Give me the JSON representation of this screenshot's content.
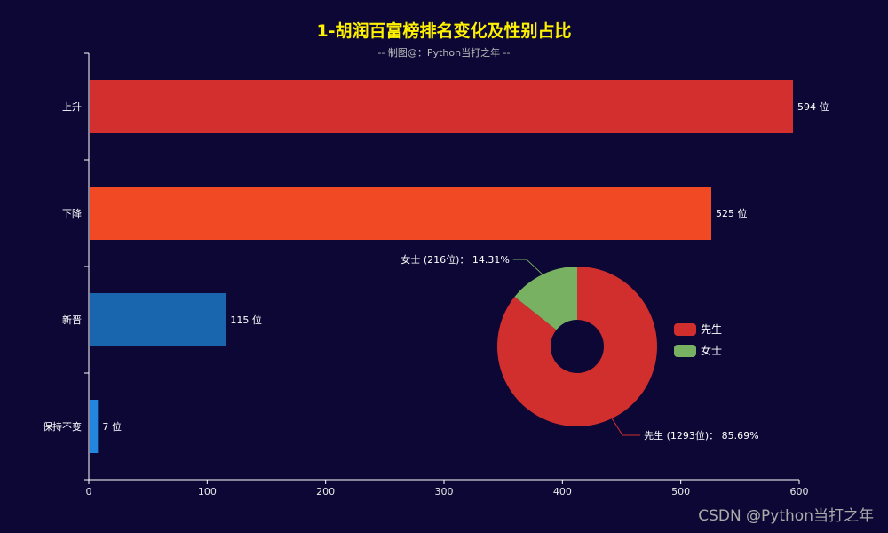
{
  "header": {
    "title": "1-胡润百富榜排名变化及性别占比",
    "subtitle": "-- 制图@：Python当打之年 --"
  },
  "watermark": "CSDN @Python当打之年",
  "chart_data": [
    {
      "type": "bar",
      "orientation": "horizontal",
      "categories": [
        "上升",
        "下降",
        "新晋",
        "保持不变"
      ],
      "values": [
        594,
        525,
        115,
        7
      ],
      "value_suffix": " 位",
      "colors": [
        "#d32f2f",
        "#f04923",
        "#1a66ae",
        "#2386de"
      ],
      "xlim": [
        0,
        600
      ],
      "xticks": [
        0,
        100,
        200,
        300,
        400,
        500,
        600
      ],
      "grid": false
    },
    {
      "type": "pie",
      "donut": true,
      "labels": [
        "先生",
        "女士"
      ],
      "values": [
        1293,
        216
      ],
      "percentages": [
        85.69,
        14.31
      ],
      "data_labels": [
        "先生 (1293位)：  85.69%",
        "女士 (216位)：  14.31%"
      ],
      "colors": [
        "#d12f2e",
        "#78b162"
      ],
      "legend": {
        "position": "right",
        "entries": [
          "先生",
          "女士"
        ]
      }
    }
  ]
}
